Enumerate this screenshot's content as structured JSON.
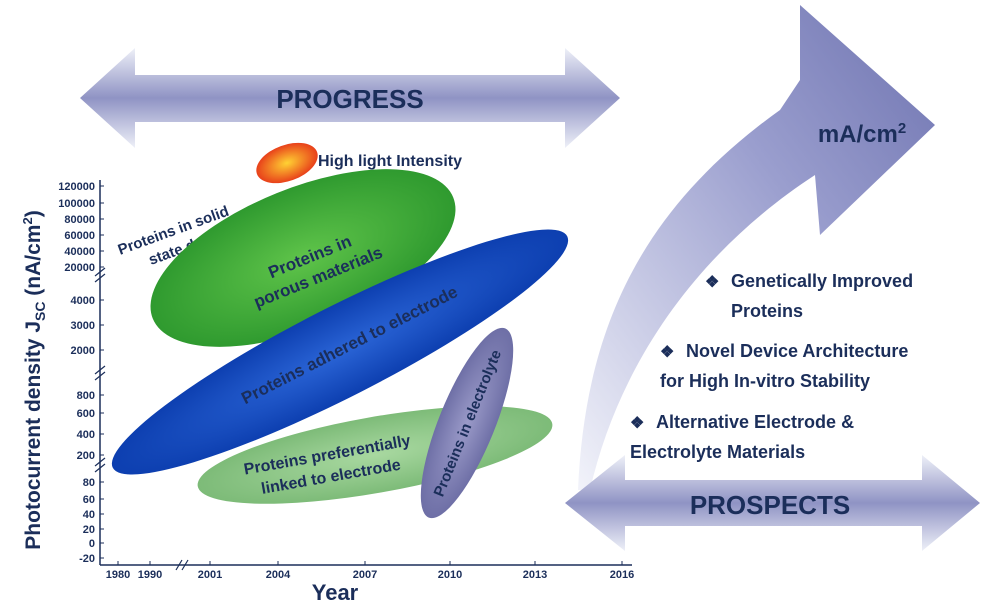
{
  "progress_arrow": {
    "label": "PROGRESS"
  },
  "prospects_arrow": {
    "label": "PROSPECTS"
  },
  "curved_arrow": {
    "label": "mA/cm",
    "label_sup": "2"
  },
  "y_axis": {
    "title_parts": [
      "Photocurrent density J",
      "SC",
      " (nA/cm",
      "2",
      ")"
    ],
    "ticks": [
      "120000",
      "100000",
      "80000",
      "60000",
      "40000",
      "20000",
      "4000",
      "3000",
      "2000",
      "800",
      "600",
      "400",
      "200",
      "80",
      "60",
      "40",
      "20",
      "0",
      "-20"
    ]
  },
  "x_axis": {
    "title": "Year",
    "ticks": [
      "1980",
      "1990",
      "2001",
      "2004",
      "2007",
      "2010",
      "2013",
      "2016"
    ]
  },
  "regions": {
    "high_light": "High light Intensity",
    "solid_state": [
      "Proteins in solid",
      "state device"
    ],
    "porous": [
      "Proteins in",
      "porous materials"
    ],
    "adhered": "Proteins adhered to electrode",
    "linked": [
      "Proteins preferentially",
      "linked to  electrode"
    ],
    "electrolyte": "Proteins in electrolyte"
  },
  "prospects": [
    [
      "Genetically Improved",
      "Proteins"
    ],
    [
      "Novel Device Architecture",
      "for High In-vitro Stability"
    ],
    [
      "Alternative Electrode &",
      "Electrolyte Materials"
    ]
  ]
}
